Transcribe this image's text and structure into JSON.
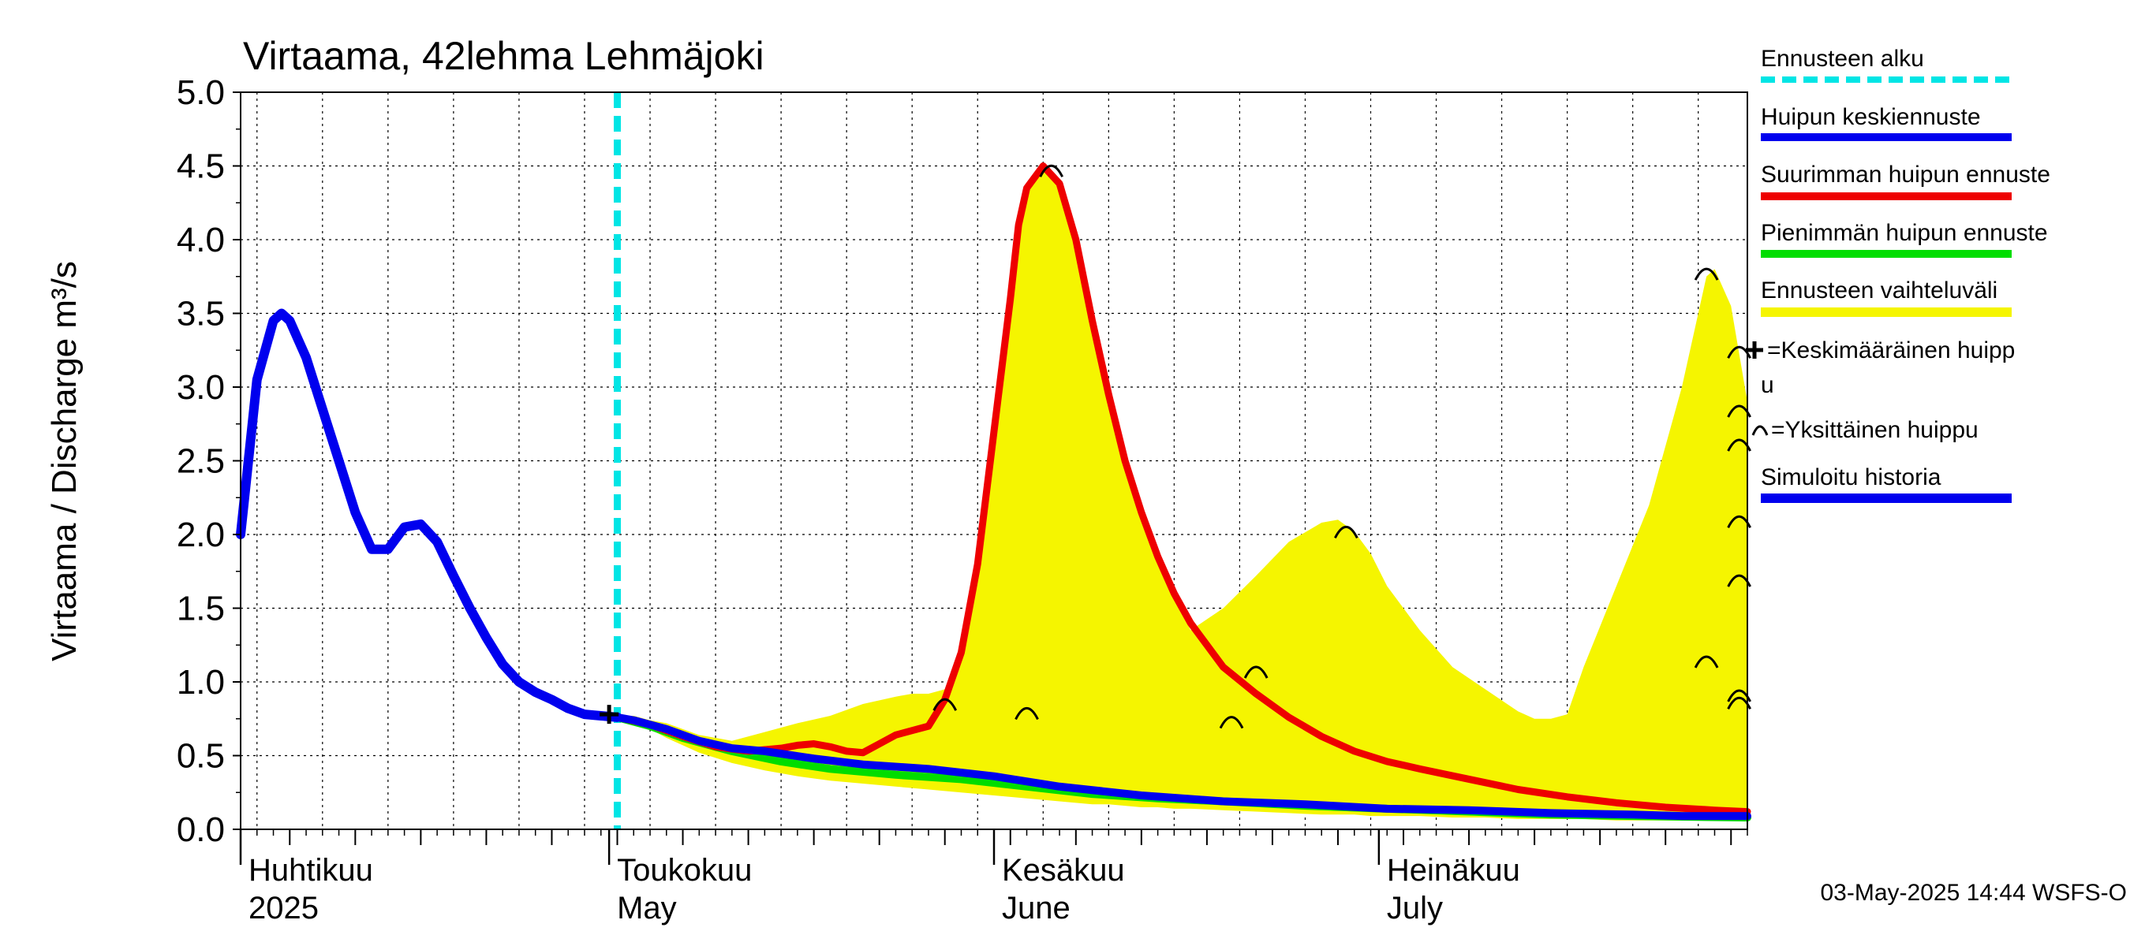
{
  "chart_data": {
    "type": "line",
    "title": "Virtaama, 42lehma Lehmäjoki",
    "ylabel": "Virtaama / Discharge    m³/s",
    "ylim": [
      0.0,
      5.0
    ],
    "y_ticks": [
      "0.0",
      "0.5",
      "1.0",
      "1.5",
      "2.0",
      "2.5",
      "3.0",
      "3.5",
      "4.0",
      "4.5",
      "5.0"
    ],
    "x_range_days": [
      0,
      92
    ],
    "month_labels": [
      {
        "fi": "Huhtikuu",
        "en": "2025",
        "day": 0
      },
      {
        "fi": "Toukokuu",
        "en": "May",
        "day": 22.5
      },
      {
        "fi": "Kesäkuu",
        "en": "June",
        "day": 46
      },
      {
        "fi": "Heinäkuu",
        "en": "July",
        "day": 69.5
      }
    ],
    "forecast_start_day": 23,
    "timestamp": "03-May-2025 14:44 WSFS-O",
    "legend": {
      "forecast_start": "Ennusteen alku",
      "mean_peak": "Huipun keskiennuste",
      "max_peak": "Suurimman huipun ennuste",
      "min_peak": "Pienimmän huipun ennuste",
      "range": "Ennusteen vaihteluväli",
      "avg_peak_marker": "=Keskimääräinen huipp",
      "avg_peak_marker_cont": "u",
      "single_peak_marker": "=Yksittäinen huippu",
      "simulated": "Simuloitu historia"
    },
    "colors": {
      "forecast_start": "#00e5e5",
      "mean": "#0000ee",
      "max": "#ee0000",
      "min": "#00dd00",
      "range": "#f5f500",
      "history": "#0000ee"
    },
    "series": [
      {
        "name": "Simuloitu historia",
        "x": [
          0,
          1,
          2,
          2.5,
          3,
          4,
          5,
          6,
          7,
          8,
          9,
          10,
          11,
          12,
          13,
          14,
          15,
          16,
          17,
          18,
          19,
          20,
          21,
          22,
          23
        ],
        "y": [
          2.0,
          3.05,
          3.45,
          3.5,
          3.45,
          3.2,
          2.85,
          2.5,
          2.15,
          1.9,
          1.9,
          2.05,
          2.07,
          1.95,
          1.72,
          1.5,
          1.3,
          1.12,
          1.0,
          0.93,
          0.88,
          0.82,
          0.78,
          0.77,
          0.76
        ]
      },
      {
        "name": "Huipun keskiennuste",
        "x": [
          23,
          24,
          25,
          26,
          27,
          28,
          30,
          32,
          35,
          38,
          42,
          46,
          50,
          55,
          60,
          65,
          70,
          75,
          80,
          85,
          88,
          92
        ],
        "y": [
          0.76,
          0.74,
          0.71,
          0.68,
          0.64,
          0.6,
          0.55,
          0.53,
          0.48,
          0.44,
          0.41,
          0.36,
          0.29,
          0.23,
          0.19,
          0.17,
          0.14,
          0.13,
          0.11,
          0.1,
          0.09,
          0.09
        ]
      },
      {
        "name": "Suurimman huipun ennuste",
        "x": [
          23,
          25,
          27,
          29,
          31,
          33,
          34,
          35,
          36,
          37,
          38,
          39,
          40,
          41,
          42,
          43,
          44,
          45,
          46,
          47,
          47.5,
          48,
          49,
          50,
          51,
          52,
          53,
          54,
          55,
          56,
          57,
          58,
          60,
          62,
          64,
          66,
          68,
          70,
          72,
          75,
          78,
          81,
          84,
          87,
          90,
          92
        ],
        "y": [
          0.76,
          0.71,
          0.63,
          0.56,
          0.53,
          0.55,
          0.57,
          0.58,
          0.56,
          0.53,
          0.52,
          0.58,
          0.64,
          0.67,
          0.7,
          0.88,
          1.2,
          1.8,
          2.7,
          3.6,
          4.1,
          4.35,
          4.5,
          4.38,
          4.0,
          3.45,
          2.95,
          2.5,
          2.15,
          1.85,
          1.6,
          1.4,
          1.1,
          0.92,
          0.76,
          0.63,
          0.53,
          0.46,
          0.41,
          0.34,
          0.27,
          0.22,
          0.18,
          0.15,
          0.13,
          0.12
        ]
      },
      {
        "name": "Pienimmän huipun ennuste",
        "x": [
          23,
          25,
          27,
          30,
          33,
          36,
          40,
          44,
          48,
          52,
          56,
          60,
          65,
          70,
          75,
          80,
          85,
          92
        ],
        "y": [
          0.76,
          0.7,
          0.62,
          0.53,
          0.46,
          0.41,
          0.37,
          0.34,
          0.29,
          0.24,
          0.21,
          0.19,
          0.16,
          0.14,
          0.12,
          0.1,
          0.09,
          0.08
        ]
      },
      {
        "name": "Ennusteen vaihteluväli",
        "x": [
          23,
          24,
          25,
          26,
          28,
          30,
          32,
          34,
          36,
          38,
          40,
          41,
          42,
          43,
          44,
          45,
          46,
          47,
          48,
          49,
          50,
          51,
          52,
          53,
          54,
          55,
          56,
          57,
          58,
          60,
          62,
          64,
          66,
          67,
          68,
          69,
          70,
          72,
          74,
          76,
          78,
          79,
          80,
          81,
          82,
          84,
          86,
          87,
          88,
          89,
          89.5,
          90,
          91,
          92
        ],
        "upper": [
          0.76,
          0.77,
          0.74,
          0.72,
          0.64,
          0.6,
          0.66,
          0.72,
          0.77,
          0.85,
          0.9,
          0.92,
          0.92,
          0.95,
          1.2,
          1.8,
          2.7,
          3.6,
          4.3,
          4.5,
          4.4,
          4.0,
          3.45,
          2.95,
          2.5,
          2.15,
          1.85,
          1.6,
          1.35,
          1.5,
          1.72,
          1.95,
          2.08,
          2.1,
          2.02,
          1.87,
          1.65,
          1.35,
          1.1,
          0.95,
          0.8,
          0.75,
          0.75,
          0.78,
          1.1,
          1.65,
          2.2,
          2.6,
          3.0,
          3.5,
          3.75,
          3.8,
          3.55,
          2.9
        ],
        "lower": [
          0.76,
          0.73,
          0.68,
          0.62,
          0.52,
          0.45,
          0.4,
          0.36,
          0.33,
          0.31,
          0.29,
          0.28,
          0.27,
          0.26,
          0.25,
          0.24,
          0.23,
          0.22,
          0.21,
          0.2,
          0.19,
          0.18,
          0.17,
          0.17,
          0.16,
          0.15,
          0.15,
          0.14,
          0.14,
          0.13,
          0.12,
          0.11,
          0.1,
          0.1,
          0.1,
          0.09,
          0.09,
          0.09,
          0.08,
          0.08,
          0.07,
          0.07,
          0.07,
          0.07,
          0.07,
          0.06,
          0.06,
          0.06,
          0.06,
          0.06,
          0.06,
          0.06,
          0.06,
          0.06
        ]
      }
    ],
    "single_peaks": [
      {
        "day": 43,
        "value": 0.86
      },
      {
        "day": 48,
        "value": 0.8
      },
      {
        "day": 49.5,
        "value": 4.48
      },
      {
        "day": 60.5,
        "value": 0.74
      },
      {
        "day": 62,
        "value": 1.08
      },
      {
        "day": 67.5,
        "value": 2.03
      },
      {
        "day": 89.5,
        "value": 1.15
      },
      {
        "day": 89.5,
        "value": 3.78
      },
      {
        "day": 91.5,
        "value": 3.25
      },
      {
        "day": 91.5,
        "value": 2.85
      },
      {
        "day": 91.5,
        "value": 2.62
      },
      {
        "day": 91.5,
        "value": 2.1
      },
      {
        "day": 91.5,
        "value": 1.7
      },
      {
        "day": 91.5,
        "value": 0.92
      },
      {
        "day": 91.5,
        "value": 0.87
      }
    ],
    "average_peak": {
      "day": 22.5,
      "value": 0.78
    }
  }
}
